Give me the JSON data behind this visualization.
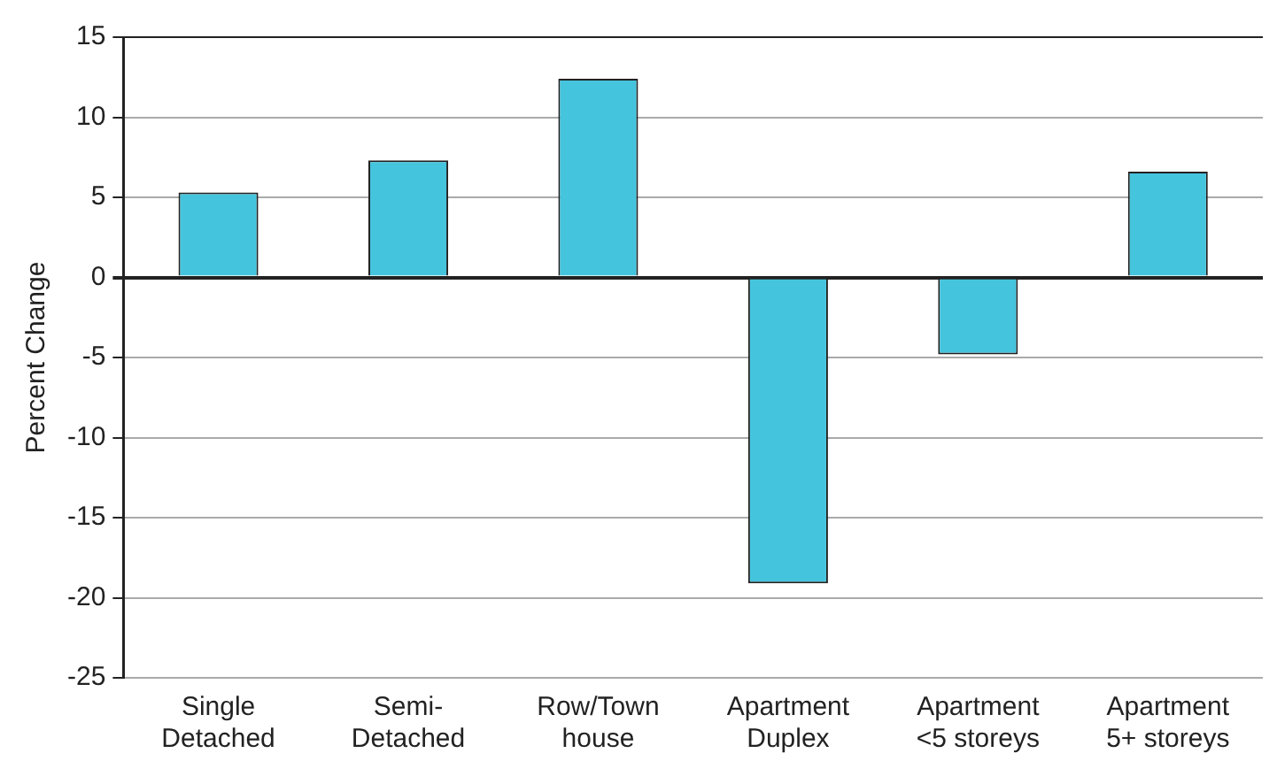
{
  "chart_data": {
    "type": "bar",
    "ylabel": "Percent Change",
    "categories": [
      "Single Detached",
      "Semi-Detached",
      "Row/Town house",
      "Apartment Duplex",
      "Apartment <5 storeys",
      "Apartment 5+ storeys"
    ],
    "values": [
      5.3,
      7.3,
      12.4,
      -19.1,
      -4.8,
      6.6
    ],
    "color": "#45c4dd",
    "ylim": [
      -25,
      15
    ],
    "yticks": [
      -25,
      -20,
      -15,
      -10,
      -5,
      0,
      5,
      10,
      15
    ],
    "grid": "y",
    "legend": false
  }
}
